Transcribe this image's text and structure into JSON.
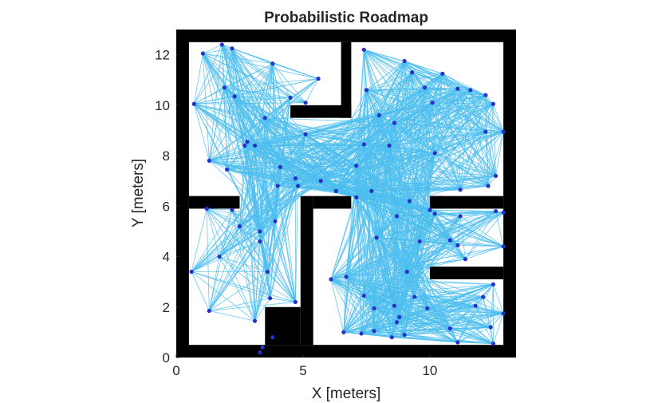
{
  "chart_data": {
    "type": "scatter",
    "title": "Probabilistic Roadmap",
    "xlabel": "X [meters]",
    "ylabel": "Y [meters]",
    "xlim": [
      0,
      13.4
    ],
    "ylim": [
      0,
      13
    ],
    "xticks": [
      "0",
      "5",
      "10"
    ],
    "yticks": [
      "0",
      "2",
      "4",
      "6",
      "8",
      "10",
      "12"
    ],
    "colors": {
      "node": "#2633c6",
      "edge": "#4dbeee",
      "obstacle": "#000000",
      "free": "#ffffff",
      "text": "#262626"
    },
    "map": {
      "description": "black cells are occupied",
      "occupied": [
        {
          "x": [
            0,
            0.5
          ],
          "y": [
            0,
            13
          ]
        },
        {
          "x": [
            12.9,
            13.4
          ],
          "y": [
            0,
            13
          ]
        },
        {
          "x": [
            0,
            13.4
          ],
          "y": [
            12.5,
            13
          ]
        },
        {
          "x": [
            0,
            13.4
          ],
          "y": [
            0,
            0.5
          ]
        },
        {
          "x": [
            6.5,
            6.9
          ],
          "y": [
            9.5,
            12.5
          ]
        },
        {
          "x": [
            4.5,
            6.9
          ],
          "y": [
            9.5,
            10
          ]
        },
        {
          "x": [
            0.5,
            2.5
          ],
          "y": [
            5.9,
            6.4
          ]
        },
        {
          "x": [
            4.9,
            5.4
          ],
          "y": [
            0.5,
            6.4
          ]
        },
        {
          "x": [
            5.4,
            6.9
          ],
          "y": [
            5.9,
            6.4
          ]
        },
        {
          "x": [
            3.5,
            4.9
          ],
          "y": [
            0.5,
            2
          ]
        },
        {
          "x": [
            10,
            12.9
          ],
          "y": [
            5.9,
            6.4
          ]
        },
        {
          "x": [
            10,
            12.9
          ],
          "y": [
            3.1,
            3.6
          ]
        },
        {
          "x": [
            10,
            10.5
          ],
          "y": [
            5.9,
            6.4
          ]
        },
        {
          "x": [
            10,
            10.5
          ],
          "y": [
            3.1,
            3.6
          ]
        }
      ]
    },
    "nodes": {
      "x": [
        1.05,
        1.8,
        2.2,
        0.7,
        1.9,
        2.3,
        3.8,
        4.5,
        5.1,
        5.6,
        3.5,
        2.7,
        2.8,
        3.1,
        1.3,
        2.0,
        4.1,
        4.7,
        5.1,
        4.8,
        4.0,
        3.9,
        5.7,
        6.3,
        1.2,
        2.2,
        2.5,
        3.3,
        1.7,
        3.6,
        3.3,
        0.6,
        1.3,
        3.1,
        4.7,
        3.7,
        3.8,
        3.3,
        3.4,
        7.4,
        7.5,
        8.0,
        9.0,
        8.6,
        9.3,
        9.8,
        10.5,
        11.1,
        11.6,
        12.2,
        12.5,
        12.2,
        12.9,
        7.4,
        8.4,
        10.1,
        10.2,
        7.1,
        11.2,
        12.6,
        12.3,
        6.3,
        7.7,
        7.1,
        9.2,
        10.0,
        10.2,
        11.2,
        12.6,
        12.9,
        7.9,
        8.7,
        6.1,
        6.7,
        9.1,
        9.6,
        7.4,
        7.8,
        8.6,
        10.8,
        11.1,
        11.4,
        12.9,
        12.5,
        12.9,
        12.1,
        8.8,
        8.7,
        9.4,
        10.8,
        11.8,
        12.4,
        6.6,
        7.3,
        7.8,
        9.0,
        8.5,
        11.1,
        12.5,
        9.9
      ],
      "y": [
        12.05,
        12.4,
        12.25,
        10.05,
        10.7,
        10.35,
        11.65,
        10.3,
        10.1,
        11.05,
        9.5,
        8.4,
        8.55,
        8.4,
        7.8,
        7.45,
        7.55,
        7.1,
        8.85,
        6.8,
        6.8,
        5.4,
        7.0,
        6.6,
        5.9,
        5.85,
        5.2,
        5.0,
        4.0,
        3.4,
        4.6,
        3.4,
        1.85,
        1.45,
        2.2,
        2.35,
        0.8,
        0.2,
        0.4,
        12.2,
        10.6,
        9.6,
        11.75,
        9.3,
        11.3,
        10.7,
        11.25,
        10.65,
        10.6,
        10.4,
        10.05,
        8.95,
        8.95,
        8.45,
        8.4,
        10.1,
        8.1,
        7.6,
        6.65,
        7.2,
        6.8,
        6.6,
        6.6,
        6.35,
        6.2,
        5.85,
        5.7,
        5.6,
        5.8,
        5.75,
        4.75,
        5.6,
        3.1,
        3.2,
        3.4,
        4.6,
        2.45,
        1.95,
        2.05,
        4.65,
        4.45,
        3.9,
        4.4,
        2.9,
        1.75,
        2.4,
        1.6,
        1.4,
        2.4,
        1.15,
        2.05,
        1.2,
        1.0,
        0.95,
        1.05,
        0.9,
        0.8,
        0.6,
        0.55,
        1.95
      ]
    }
  }
}
